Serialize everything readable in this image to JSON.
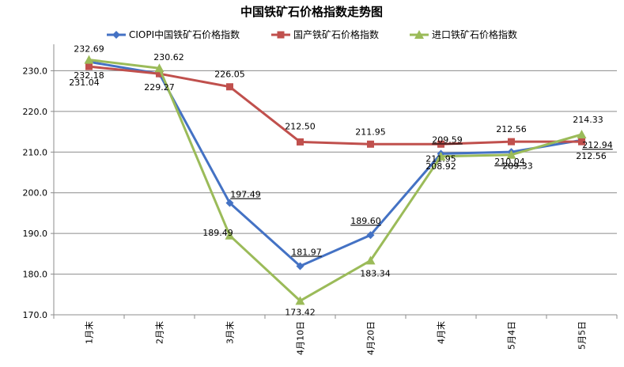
{
  "chart_data": {
    "type": "line",
    "title": "中国铁矿石价格指数走势图",
    "xlabel": "",
    "ylabel": "",
    "categories": [
      "1月末",
      "2月末",
      "3月末",
      "4月10日",
      "4月20日",
      "4月末",
      "5月4日",
      "5月5日"
    ],
    "ylim": [
      170,
      235
    ],
    "yticks": [
      "170.0",
      "180.0",
      "190.0",
      "200.0",
      "210.0",
      "220.0",
      "230.0"
    ],
    "grid": true,
    "legend_position": "top",
    "series": [
      {
        "name": "CIOPI中国铁矿石价格指数",
        "color": "#4472C4",
        "marker": "diamond",
        "values": [
          232.18,
          229.27,
          197.49,
          181.97,
          189.6,
          209.59,
          210.04,
          212.94
        ],
        "labels": [
          "232.18",
          "229.27",
          "197.49",
          "181.97",
          "189.60",
          "209.59",
          "210.04",
          "212.94"
        ]
      },
      {
        "name": "国产铁矿石价格指数",
        "color": "#C0504D",
        "marker": "square",
        "values": [
          231.04,
          229.27,
          226.05,
          212.5,
          211.95,
          211.95,
          212.56,
          212.56
        ],
        "labels": [
          "231.04",
          "",
          "226.05",
          "212.50",
          "211.95",
          "211.95",
          "212.56",
          "212.56"
        ]
      },
      {
        "name": "进口铁矿石价格指数",
        "color": "#9BBB59",
        "marker": "triangle",
        "values": [
          232.69,
          230.62,
          189.49,
          173.42,
          183.34,
          208.92,
          209.33,
          214.33
        ],
        "labels": [
          "232.69",
          "230.62",
          "189.49",
          "173.42",
          "183.34",
          "208.92",
          "209.33",
          "214.33"
        ]
      }
    ]
  }
}
